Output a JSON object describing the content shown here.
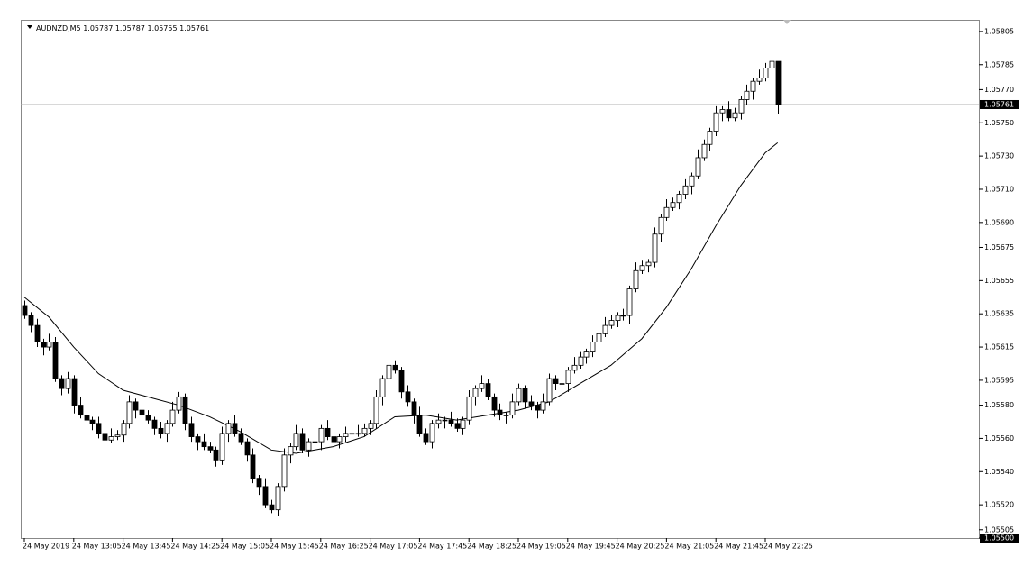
{
  "chart_data": {
    "type": "candlestick",
    "symbol": "AUDNZD,M5",
    "ylim": [
      1.055,
      1.05812
    ],
    "yticks": [
      {
        "value": 1.05805,
        "label": "1.05805"
      },
      {
        "value": 1.05785,
        "label": "1.05785"
      },
      {
        "value": 1.0577,
        "label": "1.05770"
      },
      {
        "value": 1.0575,
        "label": "1.05750"
      },
      {
        "value": 1.0573,
        "label": "1.05730"
      },
      {
        "value": 1.0571,
        "label": "1.05710"
      },
      {
        "value": 1.0569,
        "label": "1.05690"
      },
      {
        "value": 1.05675,
        "label": "1.05675"
      },
      {
        "value": 1.05655,
        "label": "1.05655"
      },
      {
        "value": 1.05635,
        "label": "1.05635"
      },
      {
        "value": 1.05615,
        "label": "1.05615"
      },
      {
        "value": 1.05595,
        "label": "1.05595"
      },
      {
        "value": 1.0558,
        "label": "1.05580"
      },
      {
        "value": 1.0556,
        "label": "1.05560"
      },
      {
        "value": 1.0554,
        "label": "1.05540"
      },
      {
        "value": 1.0552,
        "label": "1.05520"
      },
      {
        "value": 1.05505,
        "label": "1.05505"
      },
      {
        "value": 1.055,
        "label": "1.05500"
      }
    ],
    "categories": [
      "24 May 2019",
      null,
      null,
      null,
      null,
      null,
      null,
      null,
      "24 May 13:05",
      null,
      null,
      null,
      null,
      null,
      null,
      null,
      "24 May 13:45",
      null,
      null,
      null,
      null,
      null,
      null,
      null,
      "24 May 14:25",
      null,
      null,
      null,
      null,
      null,
      null,
      null,
      "24 May 15:05",
      null,
      null,
      null,
      null,
      null,
      null,
      null,
      "24 May 15:45",
      null,
      null,
      null,
      null,
      null,
      null,
      null,
      "24 May 16:25",
      null,
      null,
      null,
      null,
      null,
      null,
      null,
      "24 May 17:05",
      null,
      null,
      null,
      null,
      null,
      null,
      null,
      "24 May 17:45",
      null,
      null,
      null,
      null,
      null,
      null,
      null,
      "24 May 18:25",
      null,
      null,
      null,
      null,
      null,
      null,
      null,
      "24 May 19:05",
      null,
      null,
      null,
      null,
      null,
      null,
      null,
      "24 May 19:45",
      null,
      null,
      null,
      null,
      null,
      null,
      null,
      "24 May 20:25",
      null,
      null,
      null,
      null,
      null,
      null,
      null,
      "24 May 21:05",
      null,
      null,
      null,
      null,
      null,
      null,
      null,
      "24 May 21:45",
      null,
      null,
      null,
      null,
      null,
      null,
      null,
      "24 May 22:25",
      null,
      null
    ],
    "ohlc": [
      [
        1.0564,
        1.05643,
        1.05632,
        1.05634
      ],
      [
        1.05634,
        1.05636,
        1.05624,
        1.05628
      ],
      [
        1.05628,
        1.05632,
        1.05615,
        1.05618
      ],
      [
        1.05618,
        1.0562,
        1.0561,
        1.05615
      ],
      [
        1.05615,
        1.05623,
        1.05613,
        1.05618
      ],
      [
        1.05618,
        1.05621,
        1.05594,
        1.05596
      ],
      [
        1.05596,
        1.05598,
        1.05586,
        1.0559
      ],
      [
        1.0559,
        1.056,
        1.05587,
        1.05596
      ],
      [
        1.05596,
        1.05598,
        1.05575,
        1.0558
      ],
      [
        1.0558,
        1.05585,
        1.05572,
        1.05574
      ],
      [
        1.05574,
        1.05577,
        1.05569,
        1.05571
      ],
      [
        1.05571,
        1.05573,
        1.05565,
        1.05569
      ],
      [
        1.05569,
        1.05573,
        1.0556,
        1.05563
      ],
      [
        1.05563,
        1.05565,
        1.05554,
        1.05559
      ],
      [
        1.05559,
        1.05566,
        1.05557,
        1.05561
      ],
      [
        1.05561,
        1.05565,
        1.05559,
        1.05562
      ],
      [
        1.05562,
        1.05571,
        1.05558,
        1.05569
      ],
      [
        1.05569,
        1.05586,
        1.05566,
        1.05582
      ],
      [
        1.05582,
        1.05584,
        1.05572,
        1.05577
      ],
      [
        1.05577,
        1.05582,
        1.05572,
        1.05574
      ],
      [
        1.05574,
        1.05577,
        1.05569,
        1.05571
      ],
      [
        1.05571,
        1.05573,
        1.05562,
        1.05566
      ],
      [
        1.05566,
        1.0557,
        1.0556,
        1.05563
      ],
      [
        1.05563,
        1.05571,
        1.05558,
        1.05569
      ],
      [
        1.05569,
        1.05582,
        1.05567,
        1.05577
      ],
      [
        1.05577,
        1.05588,
        1.05575,
        1.05585
      ],
      [
        1.05585,
        1.05587,
        1.05565,
        1.05569
      ],
      [
        1.05569,
        1.05573,
        1.05558,
        1.05561
      ],
      [
        1.05561,
        1.05563,
        1.05553,
        1.05558
      ],
      [
        1.05558,
        1.05563,
        1.05553,
        1.05555
      ],
      [
        1.05555,
        1.05558,
        1.05551,
        1.05553
      ],
      [
        1.05553,
        1.05555,
        1.05543,
        1.05547
      ],
      [
        1.05547,
        1.05567,
        1.05544,
        1.05563
      ],
      [
        1.05563,
        1.05571,
        1.05558,
        1.05569
      ],
      [
        1.05569,
        1.05574,
        1.05561,
        1.05563
      ],
      [
        1.05563,
        1.05566,
        1.05556,
        1.05558
      ],
      [
        1.05558,
        1.0556,
        1.05546,
        1.0555
      ],
      [
        1.0555,
        1.05554,
        1.05533,
        1.05536
      ],
      [
        1.05536,
        1.05538,
        1.05526,
        1.05531
      ],
      [
        1.05531,
        1.05536,
        1.05518,
        1.0552
      ],
      [
        1.0552,
        1.05523,
        1.05515,
        1.05517
      ],
      [
        1.05517,
        1.05533,
        1.05513,
        1.05531
      ],
      [
        1.05531,
        1.05554,
        1.05528,
        1.0555
      ],
      [
        1.0555,
        1.05557,
        1.05545,
        1.05555
      ],
      [
        1.05555,
        1.05568,
        1.05553,
        1.05563
      ],
      [
        1.05563,
        1.05566,
        1.05551,
        1.05553
      ],
      [
        1.05553,
        1.0556,
        1.05549,
        1.05558
      ],
      [
        1.05558,
        1.05562,
        1.05555,
        1.05558
      ],
      [
        1.05558,
        1.05568,
        1.05553,
        1.05566
      ],
      [
        1.05566,
        1.05571,
        1.05559,
        1.05561
      ],
      [
        1.05561,
        1.05564,
        1.05556,
        1.05558
      ],
      [
        1.05558,
        1.05563,
        1.05554,
        1.05561
      ],
      [
        1.05561,
        1.05567,
        1.05558,
        1.05563
      ],
      [
        1.05563,
        1.05565,
        1.05558,
        1.05563
      ],
      [
        1.05563,
        1.05568,
        1.05561,
        1.05563
      ],
      [
        1.05563,
        1.05569,
        1.05561,
        1.05566
      ],
      [
        1.05566,
        1.05571,
        1.05562,
        1.05569
      ],
      [
        1.05569,
        1.05589,
        1.05566,
        1.05585
      ],
      [
        1.05585,
        1.05598,
        1.0558,
        1.05596
      ],
      [
        1.05596,
        1.05609,
        1.05594,
        1.05604
      ],
      [
        1.05604,
        1.05607,
        1.05599,
        1.05601
      ],
      [
        1.05601,
        1.05603,
        1.05584,
        1.05588
      ],
      [
        1.05588,
        1.05592,
        1.05579,
        1.05582
      ],
      [
        1.05582,
        1.05584,
        1.05569,
        1.05574
      ],
      [
        1.05574,
        1.05579,
        1.05561,
        1.05563
      ],
      [
        1.05563,
        1.05566,
        1.05556,
        1.05558
      ],
      [
        1.05558,
        1.05571,
        1.05554,
        1.05569
      ],
      [
        1.05569,
        1.05575,
        1.05566,
        1.05571
      ],
      [
        1.05571,
        1.05573,
        1.05566,
        1.05571
      ],
      [
        1.05571,
        1.05576,
        1.05567,
        1.05569
      ],
      [
        1.05569,
        1.05572,
        1.05564,
        1.05566
      ],
      [
        1.05566,
        1.05573,
        1.05562,
        1.05571
      ],
      [
        1.05571,
        1.05589,
        1.05568,
        1.05585
      ],
      [
        1.05585,
        1.05592,
        1.0558,
        1.0559
      ],
      [
        1.0559,
        1.05598,
        1.05588,
        1.05593
      ],
      [
        1.05593,
        1.05596,
        1.05583,
        1.05585
      ],
      [
        1.05585,
        1.05587,
        1.05573,
        1.05577
      ],
      [
        1.05577,
        1.05581,
        1.05571,
        1.05574
      ],
      [
        1.05574,
        1.05576,
        1.05569,
        1.05574
      ],
      [
        1.05574,
        1.05587,
        1.05572,
        1.05582
      ],
      [
        1.05582,
        1.05593,
        1.0558,
        1.0559
      ],
      [
        1.0559,
        1.05592,
        1.05578,
        1.05582
      ],
      [
        1.05582,
        1.05586,
        1.05577,
        1.0558
      ],
      [
        1.0558,
        1.05582,
        1.05572,
        1.05577
      ],
      [
        1.05577,
        1.05587,
        1.05575,
        1.05582
      ],
      [
        1.05582,
        1.05599,
        1.0558,
        1.05596
      ],
      [
        1.05596,
        1.05598,
        1.05589,
        1.05593
      ],
      [
        1.05593,
        1.05597,
        1.0559,
        1.05593
      ],
      [
        1.05593,
        1.05603,
        1.05588,
        1.05601
      ],
      [
        1.05601,
        1.05609,
        1.05599,
        1.05604
      ],
      [
        1.05604,
        1.05612,
        1.05602,
        1.05609
      ],
      [
        1.05609,
        1.05614,
        1.05605,
        1.05612
      ],
      [
        1.05612,
        1.05622,
        1.05609,
        1.05618
      ],
      [
        1.05618,
        1.05625,
        1.05613,
        1.05623
      ],
      [
        1.05623,
        1.05633,
        1.05621,
        1.05628
      ],
      [
        1.05628,
        1.05634,
        1.05626,
        1.05631
      ],
      [
        1.05631,
        1.05636,
        1.05627,
        1.05634
      ],
      [
        1.05634,
        1.05638,
        1.05631,
        1.05634
      ],
      [
        1.05634,
        1.05652,
        1.05629,
        1.0565
      ],
      [
        1.0565,
        1.05666,
        1.05648,
        1.05661
      ],
      [
        1.05661,
        1.05667,
        1.05659,
        1.05664
      ],
      [
        1.05664,
        1.05668,
        1.0566,
        1.05666
      ],
      [
        1.05666,
        1.05687,
        1.05663,
        1.05683
      ],
      [
        1.05683,
        1.05695,
        1.05678,
        1.05693
      ],
      [
        1.05693,
        1.05704,
        1.05691,
        1.05699
      ],
      [
        1.05699,
        1.05705,
        1.05697,
        1.05702
      ],
      [
        1.05702,
        1.05709,
        1.05698,
        1.05707
      ],
      [
        1.05707,
        1.05716,
        1.05704,
        1.05712
      ],
      [
        1.05712,
        1.0572,
        1.05707,
        1.05718
      ],
      [
        1.05718,
        1.05734,
        1.05716,
        1.05729
      ],
      [
        1.05729,
        1.0574,
        1.05727,
        1.05737
      ],
      [
        1.05737,
        1.05747,
        1.05733,
        1.05745
      ],
      [
        1.05745,
        1.0576,
        1.05742,
        1.05756
      ],
      [
        1.05756,
        1.0576,
        1.05751,
        1.05758
      ],
      [
        1.05758,
        1.05763,
        1.05751,
        1.05753
      ],
      [
        1.05753,
        1.05759,
        1.05751,
        1.05756
      ],
      [
        1.05756,
        1.05766,
        1.05752,
        1.05764
      ],
      [
        1.05764,
        1.05773,
        1.05761,
        1.05769
      ],
      [
        1.05769,
        1.05777,
        1.05764,
        1.05775
      ],
      [
        1.05775,
        1.05782,
        1.05773,
        1.05777
      ],
      [
        1.05777,
        1.05786,
        1.05775,
        1.05783
      ],
      [
        1.05783,
        1.05789,
        1.05779,
        1.05787
      ],
      [
        1.05787,
        1.05787,
        1.05755,
        1.05761
      ]
    ],
    "ma": {
      "x": [
        0,
        4,
        8,
        12,
        16,
        20,
        25,
        30,
        35,
        40,
        44,
        50,
        55,
        60,
        65,
        70,
        75,
        80,
        85,
        90,
        95,
        100,
        104,
        108,
        112,
        116,
        120,
        122
      ],
      "values": [
        1.05645,
        1.05633,
        1.05615,
        1.05599,
        1.05589,
        1.05585,
        1.0558,
        1.05573,
        1.05564,
        1.05553,
        1.05551,
        1.05555,
        1.05561,
        1.05573,
        1.05574,
        1.05571,
        1.05574,
        1.05577,
        1.05582,
        1.05593,
        1.05604,
        1.0562,
        1.05639,
        1.05662,
        1.05688,
        1.05712,
        1.05732,
        1.05738
      ]
    }
  }
}
